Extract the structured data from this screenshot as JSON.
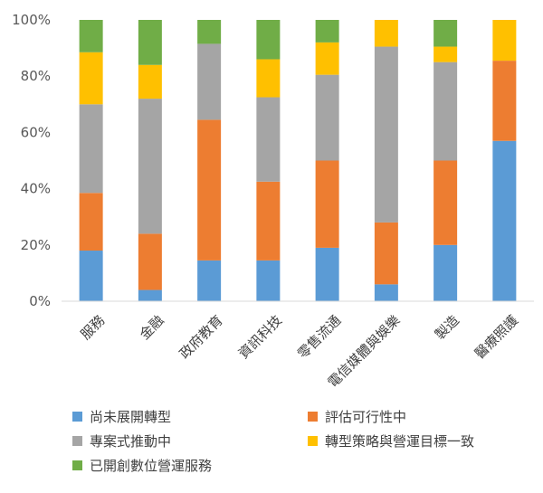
{
  "chart_data": {
    "type": "bar",
    "stacked": true,
    "normalized": true,
    "ylim": [
      0,
      100
    ],
    "yticks": [
      "0%",
      "20%",
      "40%",
      "60%",
      "80%",
      "100%"
    ],
    "categories": [
      "服務",
      "金融",
      "政府教育",
      "資訊科技",
      "零售流通",
      "電信媒體與娛樂",
      "製造",
      "醫療照護"
    ],
    "series": [
      {
        "name": "尚未展開轉型",
        "color": "#5B9BD5",
        "values": [
          18,
          4,
          14.5,
          14.5,
          19,
          6,
          20,
          57
        ]
      },
      {
        "name": "評估可行性中",
        "color": "#ED7D31",
        "values": [
          20.5,
          20,
          50,
          28,
          31,
          22,
          30,
          28.5
        ]
      },
      {
        "name": "專案式推動中",
        "color": "#A5A5A5",
        "values": [
          31.5,
          48,
          27,
          30,
          30.5,
          62.5,
          35,
          0
        ]
      },
      {
        "name": "轉型策略與營運目標一致",
        "color": "#FFC000",
        "values": [
          18.5,
          12,
          0,
          13.5,
          11.5,
          9.5,
          5.5,
          14.5
        ]
      },
      {
        "name": "已開創數位營運服務",
        "color": "#70AD47",
        "values": [
          11.5,
          16,
          8.5,
          14,
          8,
          0,
          9.5,
          0
        ]
      }
    ],
    "grid": false,
    "legend_position": "bottom"
  }
}
